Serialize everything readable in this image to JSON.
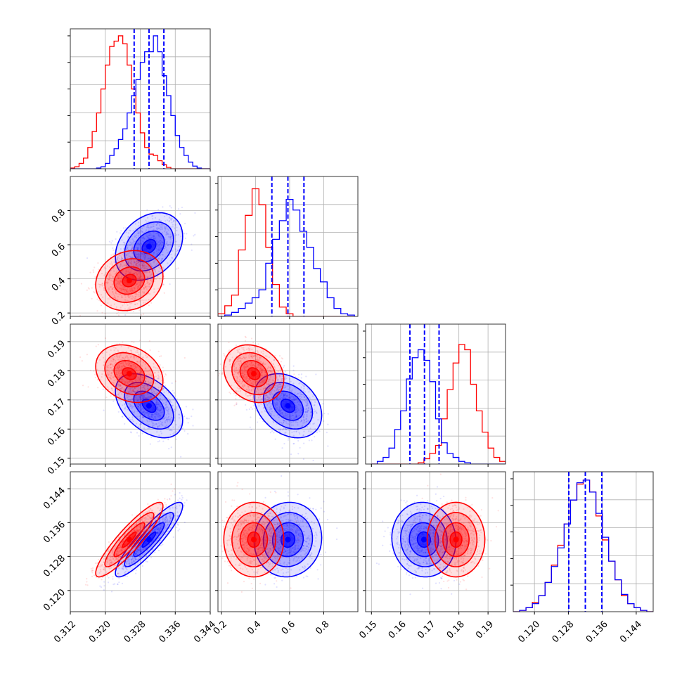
{
  "chart_data": {
    "type": "corner",
    "title": "",
    "grid": true,
    "parameters": [
      {
        "range": [
          0.312,
          0.344
        ],
        "ticks": [
          0.312,
          0.32,
          0.328,
          0.336,
          0.344
        ],
        "tick_labels": [
          "0.312",
          "0.320",
          "0.328",
          "0.336",
          "0.344"
        ]
      },
      {
        "range": [
          0.18,
          1.0
        ],
        "ticks": [
          0.2,
          0.4,
          0.6,
          0.8
        ],
        "tick_labels": [
          "0.2",
          "0.4",
          "0.6",
          "0.8"
        ]
      },
      {
        "range": [
          0.148,
          0.196
        ],
        "ticks": [
          0.15,
          0.16,
          0.17,
          0.18,
          0.19
        ],
        "tick_labels": [
          "0.15",
          "0.16",
          "0.17",
          "0.18",
          "0.19"
        ]
      },
      {
        "range": [
          0.115,
          0.148
        ],
        "ticks": [
          0.12,
          0.128,
          0.136,
          0.144
        ],
        "tick_labels": [
          "0.120",
          "0.128",
          "0.136",
          "0.144"
        ]
      }
    ],
    "series": [
      {
        "color": "#0000ff",
        "mean": [
          0.33,
          0.59,
          0.168,
          0.132
        ],
        "sigma": [
          0.0035,
          0.09,
          0.005,
          0.004
        ],
        "corr": [
          [
            1,
            0.3,
            -0.45,
            0.9
          ],
          [
            0.3,
            1,
            -0.3,
            0.05
          ],
          [
            -0.45,
            -0.3,
            1,
            -0.05
          ],
          [
            0.9,
            0.05,
            -0.05,
            1
          ]
        ]
      },
      {
        "color": "#ff0000",
        "mean": [
          0.3255,
          0.39,
          0.179,
          0.132
        ],
        "sigma": [
          0.0035,
          0.08,
          0.0045,
          0.004
        ],
        "corr": [
          [
            1,
            0.15,
            -0.25,
            0.9
          ],
          [
            0.15,
            1,
            -0.2,
            0.0
          ],
          [
            -0.25,
            -0.2,
            1,
            0.0
          ],
          [
            0.9,
            0.0,
            0.0,
            1
          ]
        ]
      }
    ],
    "quantile_lines": {
      "color": "#0000ff",
      "style": "dashed",
      "values": [
        [
          0.3266,
          0.33,
          0.3334
        ],
        [
          0.496,
          0.59,
          0.684
        ],
        [
          0.1632,
          0.1682,
          0.1732
        ],
        [
          0.1281,
          0.132,
          0.1359
        ]
      ]
    },
    "histograms": [
      {
        "bins": [
          0.312,
          0.313,
          0.314,
          0.315,
          0.316,
          0.317,
          0.318,
          0.319,
          0.32,
          0.321,
          0.322,
          0.323,
          0.324,
          0.325,
          0.326,
          0.327,
          0.328,
          0.329,
          0.33,
          0.331,
          0.332,
          0.333,
          0.334,
          0.335,
          0.336,
          0.337,
          0.338,
          0.339,
          0.34,
          0.341,
          0.342,
          0.343,
          0.344
        ],
        "blue": [
          0,
          0,
          0,
          0,
          0,
          0,
          0.005,
          0.015,
          0.04,
          0.1,
          0.15,
          0.22,
          0.3,
          0.42,
          0.55,
          0.67,
          0.8,
          0.88,
          0.88,
          1.0,
          0.88,
          0.7,
          0.55,
          0.4,
          0.25,
          0.16,
          0.1,
          0.05,
          0.02,
          0.005,
          0,
          0
        ],
        "red": [
          0.005,
          0.015,
          0.04,
          0.08,
          0.16,
          0.28,
          0.42,
          0.6,
          0.78,
          0.92,
          0.96,
          1.0,
          0.94,
          0.78,
          0.6,
          0.42,
          0.27,
          0.16,
          0.11,
          0.1,
          0.06,
          0.03,
          0.01,
          0,
          0,
          0,
          0,
          0,
          0,
          0,
          0,
          0
        ]
      },
      {
        "bins": [
          0.18,
          0.22,
          0.26,
          0.3,
          0.34,
          0.38,
          0.42,
          0.46,
          0.5,
          0.54,
          0.58,
          0.62,
          0.66,
          0.7,
          0.74,
          0.78,
          0.82,
          0.86,
          0.9,
          0.94,
          0.98
        ],
        "blue": [
          0,
          0.01,
          0.03,
          0.06,
          0.1,
          0.14,
          0.2,
          0.4,
          0.58,
          0.72,
          0.88,
          0.8,
          0.64,
          0.52,
          0.36,
          0.26,
          0.14,
          0.06,
          0.02,
          0.01
        ],
        "red": [
          0.02,
          0.08,
          0.16,
          0.5,
          0.76,
          0.96,
          0.84,
          0.52,
          0.24,
          0.07,
          0.02,
          0,
          0,
          0,
          0,
          0,
          0,
          0,
          0,
          0
        ]
      },
      {
        "bins": [
          0.15,
          0.152,
          0.154,
          0.156,
          0.158,
          0.16,
          0.162,
          0.164,
          0.166,
          0.168,
          0.17,
          0.172,
          0.174,
          0.176,
          0.178,
          0.18,
          0.182,
          0.184,
          0.186,
          0.188,
          0.19,
          0.192,
          0.194,
          0.196
        ],
        "blue": [
          0,
          0.02,
          0.05,
          0.12,
          0.26,
          0.4,
          0.64,
          0.8,
          0.86,
          0.78,
          0.62,
          0.34,
          0.16,
          0.08,
          0.05,
          0.02,
          0.01,
          0,
          0,
          0,
          0,
          0,
          0
        ],
        "red": [
          0,
          0,
          0,
          0,
          0,
          0,
          0,
          0,
          0.01,
          0.04,
          0.08,
          0.14,
          0.34,
          0.56,
          0.76,
          0.9,
          0.86,
          0.6,
          0.4,
          0.24,
          0.12,
          0.05,
          0.02
        ]
      },
      {
        "bins": [
          0.115,
          0.1165,
          0.118,
          0.1195,
          0.121,
          0.1225,
          0.124,
          0.1255,
          0.127,
          0.1285,
          0.13,
          0.1315,
          0.133,
          0.1345,
          0.136,
          0.1375,
          0.139,
          0.1405,
          0.142,
          0.1435,
          0.145,
          0.1465,
          0.148
        ],
        "blue": [
          0,
          0.01,
          0.03,
          0.06,
          0.12,
          0.22,
          0.34,
          0.48,
          0.66,
          0.84,
          0.97,
          0.99,
          0.9,
          0.74,
          0.56,
          0.38,
          0.24,
          0.13,
          0.06,
          0.03,
          0.01,
          0
        ],
        "red": [
          0,
          0.01,
          0.03,
          0.07,
          0.12,
          0.22,
          0.35,
          0.5,
          0.66,
          0.84,
          0.96,
          0.99,
          0.9,
          0.72,
          0.54,
          0.38,
          0.24,
          0.12,
          0.06,
          0.03,
          0.01,
          0
        ]
      }
    ]
  },
  "colors": {
    "blue": "#0000ff",
    "red": "#ff0000",
    "grid": "#b0b0b0",
    "frame": "#333333"
  }
}
